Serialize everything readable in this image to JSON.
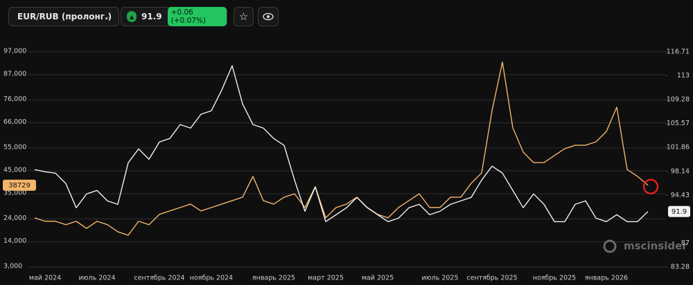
{
  "header": {
    "symbol": "EUR/RUB (пролонг.)",
    "price": 91.9,
    "change": "+0.06 (+0.07%)"
  },
  "watermark": "mscinsider",
  "chart_data": {
    "type": "line",
    "categories": [
      null,
      "май 2024",
      null,
      null,
      null,
      null,
      "июль 2024",
      null,
      null,
      null,
      null,
      null,
      "сентябрь 2024",
      null,
      null,
      null,
      null,
      "ноябрь 2024",
      null,
      null,
      null,
      null,
      null,
      "январь 2025",
      null,
      null,
      null,
      null,
      "март 2025",
      null,
      null,
      null,
      null,
      "май 2025",
      null,
      null,
      null,
      null,
      null,
      "июль 2025",
      null,
      null,
      null,
      null,
      "сентябрь 2025",
      null,
      null,
      null,
      null,
      null,
      "ноябрь 2025",
      null,
      null,
      null,
      null,
      "январь 2026",
      null,
      null,
      null,
      null
    ],
    "series": [
      {
        "color": "#f2f2f2",
        "axis": "y2",
        "values": [
          98.41,
          98.08,
          97.87,
          96.25,
          92.49,
          94.64,
          95.18,
          93.56,
          93.02,
          99.48,
          101.64,
          100.02,
          102.71,
          103.25,
          105.41,
          104.87,
          107.02,
          107.56,
          110.79,
          114.56,
          108.64,
          105.41,
          104.87,
          103.25,
          102.18,
          96.79,
          91.95,
          95.72,
          90.33,
          91.41,
          92.49,
          94.1,
          92.49,
          91.41,
          90.33,
          90.87,
          92.49,
          93.02,
          91.41,
          91.95,
          93.02,
          93.56,
          94.1,
          96.79,
          98.95,
          97.87,
          95.18,
          92.49,
          94.64,
          93.02,
          90.33,
          90.33,
          93.02,
          93.56,
          90.87,
          90.33,
          91.41,
          90.33,
          90.33,
          91.9
        ]
      },
      {
        "color": "#f5b56b",
        "values": [
          24500,
          23000,
          23000,
          21500,
          23000,
          19900,
          23000,
          21500,
          18400,
          16900,
          23000,
          21500,
          26000,
          27500,
          29000,
          30500,
          27500,
          29000,
          30500,
          32000,
          33500,
          42600,
          32000,
          30500,
          33500,
          35000,
          29000,
          38100,
          24500,
          29000,
          30500,
          33500,
          29000,
          26000,
          24500,
          29000,
          32000,
          35000,
          29000,
          29000,
          33500,
          33500,
          39600,
          44100,
          71300,
          92500,
          63800,
          53200,
          48600,
          48600,
          51700,
          54700,
          56200,
          56200,
          57700,
          62200,
          72800,
          45600,
          42600,
          38729
        ]
      }
    ],
    "ylim": [
      -600,
      103000
    ],
    "yticks": [
      {
        "value": 3000,
        "label": "3,000"
      },
      {
        "value": 14000,
        "label": "14,000"
      },
      {
        "value": 24000,
        "label": "24,000"
      },
      {
        "value": 35000,
        "label": "35,000"
      },
      {
        "value": 45000,
        "label": "45,000"
      },
      {
        "value": 55000,
        "label": "55,000"
      },
      {
        "value": 66000,
        "label": "66,000"
      },
      {
        "value": 76000,
        "label": "76,000"
      },
      {
        "value": 87000,
        "label": "87,000"
      },
      {
        "value": 97000,
        "label": "97,000"
      }
    ],
    "y2lim": [
      81.99,
      118.86
    ],
    "y2ticks": [
      83.28,
      87,
      94.43,
      98.14,
      101.86,
      105.57,
      109.28,
      113,
      116.71
    ],
    "grid": true
  }
}
